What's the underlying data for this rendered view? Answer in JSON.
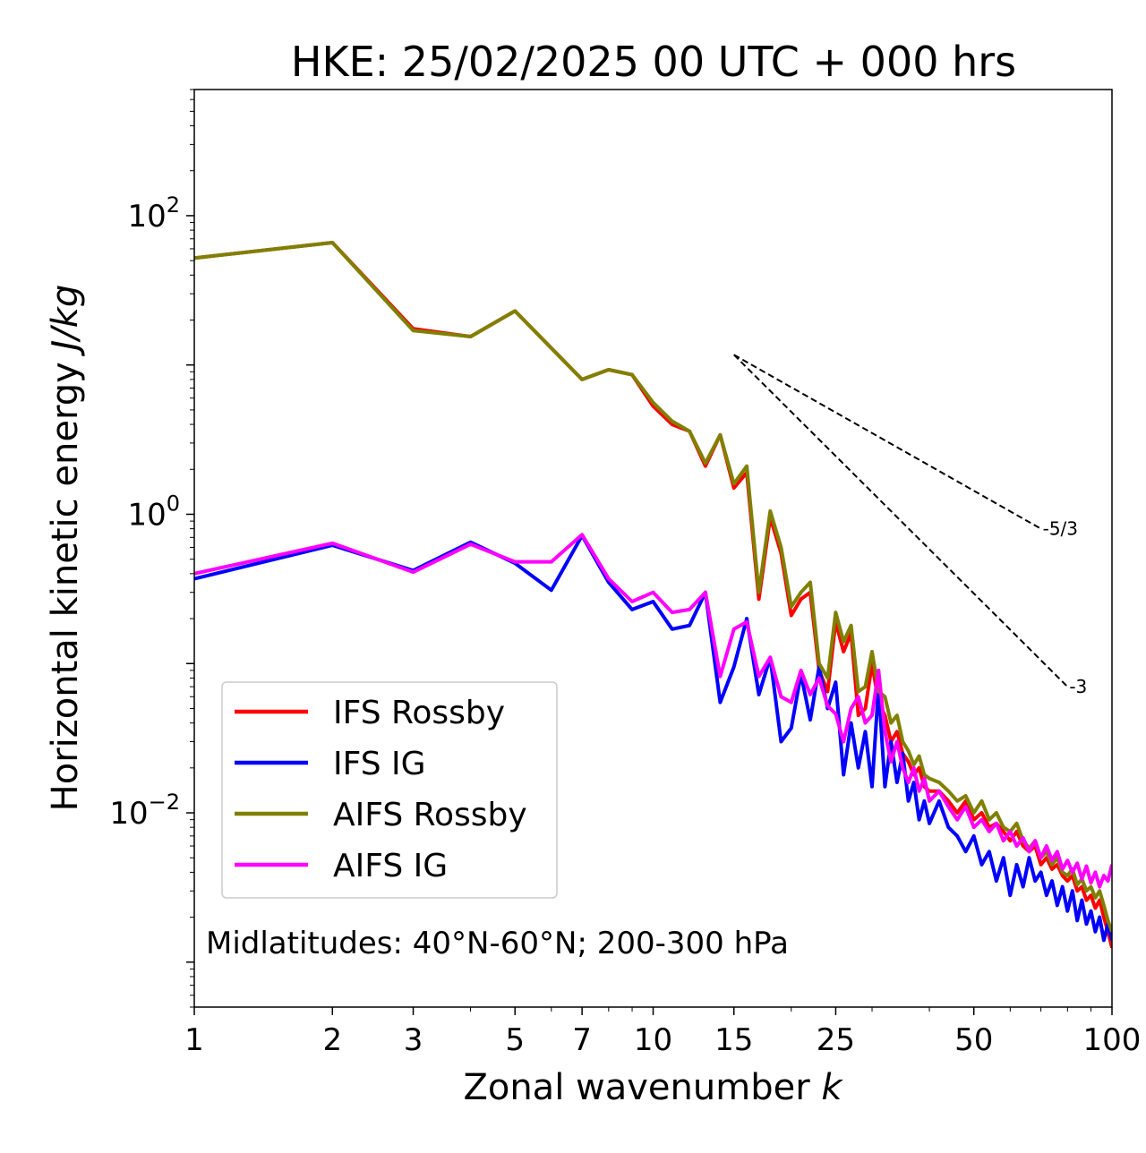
{
  "chart_data": {
    "type": "line",
    "title": "HKE: 25/02/2025 00 UTC + 000 hrs",
    "xlabel": "Zonal wavenumber",
    "xlabel_var": "k",
    "ylabel": "Horizontal kinetic energy",
    "ylabel_unit": "J/kg",
    "x_scale": "log",
    "y_scale": "log",
    "xlim": [
      1,
      100
    ],
    "ylim": [
      0.0005,
      700
    ],
    "x_ticks": [
      1,
      2,
      3,
      5,
      7,
      10,
      15,
      25,
      50,
      100
    ],
    "x_tick_labels": [
      "1",
      "2",
      "3",
      "5",
      "7",
      "10",
      "15",
      "25",
      "50",
      "100"
    ],
    "y_ticks": [
      0.01,
      1,
      100
    ],
    "y_tick_labels": [
      {
        "base": "10",
        "exp": "−2"
      },
      {
        "base": "10",
        "exp": "0"
      },
      {
        "base": "10",
        "exp": "2"
      }
    ],
    "grid": false,
    "legend_position": "lower-left",
    "annotation": "Midlatitudes: 40°N-60°N; 200-300 hPa",
    "reference_slopes": [
      {
        "label": "-5/3",
        "x": [
          15,
          70
        ],
        "y": [
          11.7,
          0.8
        ]
      },
      {
        "label": "-3",
        "x": [
          15,
          80
        ],
        "y": [
          11.7,
          0.07
        ]
      }
    ],
    "series": [
      {
        "name": "IFS Rossby",
        "color": "#ff0000",
        "points": [
          [
            1,
            52
          ],
          [
            2,
            66
          ],
          [
            3,
            17.5
          ],
          [
            4,
            15.5
          ],
          [
            5,
            23
          ],
          [
            7,
            8
          ],
          [
            8,
            9.3
          ],
          [
            9,
            8.6
          ],
          [
            10,
            5.3
          ],
          [
            11,
            4
          ],
          [
            12,
            3.6
          ],
          [
            13,
            2.1
          ],
          [
            14,
            3.4
          ],
          [
            15,
            1.5
          ],
          [
            16,
            1.9
          ],
          [
            17,
            0.27
          ],
          [
            18,
            0.95
          ],
          [
            19,
            0.55
          ],
          [
            20,
            0.21
          ],
          [
            21,
            0.27
          ],
          [
            22,
            0.3
          ],
          [
            23,
            0.09
          ],
          [
            24,
            0.065
          ],
          [
            25,
            0.19
          ],
          [
            26,
            0.12
          ],
          [
            27,
            0.16
          ],
          [
            28,
            0.045
          ],
          [
            29,
            0.05
          ],
          [
            30,
            0.1
          ],
          [
            31,
            0.055
          ],
          [
            32,
            0.045
          ],
          [
            33,
            0.03
          ],
          [
            34,
            0.035
          ],
          [
            35,
            0.025
          ],
          [
            36,
            0.022
          ],
          [
            37,
            0.018
          ],
          [
            38,
            0.02
          ],
          [
            39,
            0.015
          ],
          [
            40,
            0.014
          ],
          [
            42,
            0.014
          ],
          [
            44,
            0.012
          ],
          [
            46,
            0.01
          ],
          [
            48,
            0.012
          ],
          [
            50,
            0.009
          ],
          [
            52,
            0.01
          ],
          [
            54,
            0.008
          ],
          [
            56,
            0.0085
          ],
          [
            58,
            0.0075
          ],
          [
            60,
            0.0065
          ],
          [
            62,
            0.0075
          ],
          [
            64,
            0.006
          ],
          [
            66,
            0.0055
          ],
          [
            68,
            0.006
          ],
          [
            70,
            0.0045
          ],
          [
            72,
            0.005
          ],
          [
            74,
            0.0042
          ],
          [
            76,
            0.0045
          ],
          [
            78,
            0.0038
          ],
          [
            80,
            0.0035
          ],
          [
            82,
            0.0038
          ],
          [
            84,
            0.003
          ],
          [
            86,
            0.0032
          ],
          [
            88,
            0.0026
          ],
          [
            90,
            0.0028
          ],
          [
            92,
            0.0023
          ],
          [
            94,
            0.0026
          ],
          [
            96,
            0.002
          ],
          [
            98,
            0.0016
          ],
          [
            100,
            0.00125
          ]
        ]
      },
      {
        "name": "IFS IG",
        "color": "#0000ff",
        "points": [
          [
            1,
            0.37
          ],
          [
            2,
            0.62
          ],
          [
            3,
            0.42
          ],
          [
            4,
            0.65
          ],
          [
            5,
            0.47
          ],
          [
            6,
            0.31
          ],
          [
            7,
            0.72
          ],
          [
            8,
            0.35
          ],
          [
            9,
            0.23
          ],
          [
            10,
            0.26
          ],
          [
            11,
            0.17
          ],
          [
            12,
            0.18
          ],
          [
            13,
            0.3
          ],
          [
            14,
            0.055
          ],
          [
            15,
            0.095
          ],
          [
            16,
            0.2
          ],
          [
            17,
            0.062
          ],
          [
            18,
            0.11
          ],
          [
            19,
            0.03
          ],
          [
            20,
            0.037
          ],
          [
            21,
            0.085
          ],
          [
            22,
            0.042
          ],
          [
            23,
            0.095
          ],
          [
            24,
            0.05
          ],
          [
            25,
            0.075
          ],
          [
            26,
            0.018
          ],
          [
            27,
            0.04
          ],
          [
            28,
            0.02
          ],
          [
            29,
            0.035
          ],
          [
            30,
            0.015
          ],
          [
            31,
            0.07
          ],
          [
            32,
            0.015
          ],
          [
            33,
            0.03
          ],
          [
            34,
            0.016
          ],
          [
            35,
            0.025
          ],
          [
            36,
            0.012
          ],
          [
            37,
            0.016
          ],
          [
            38,
            0.009
          ],
          [
            39,
            0.012
          ],
          [
            40,
            0.0085
          ],
          [
            42,
            0.012
          ],
          [
            44,
            0.008
          ],
          [
            46,
            0.007
          ],
          [
            48,
            0.0055
          ],
          [
            50,
            0.007
          ],
          [
            52,
            0.0045
          ],
          [
            54,
            0.0055
          ],
          [
            56,
            0.0035
          ],
          [
            58,
            0.005
          ],
          [
            60,
            0.0028
          ],
          [
            62,
            0.0045
          ],
          [
            64,
            0.0032
          ],
          [
            66,
            0.005
          ],
          [
            68,
            0.0035
          ],
          [
            70,
            0.004
          ],
          [
            72,
            0.0028
          ],
          [
            74,
            0.0035
          ],
          [
            76,
            0.0024
          ],
          [
            78,
            0.0032
          ],
          [
            80,
            0.0022
          ],
          [
            82,
            0.003
          ],
          [
            84,
            0.0019
          ],
          [
            86,
            0.0026
          ],
          [
            88,
            0.0018
          ],
          [
            90,
            0.0022
          ],
          [
            92,
            0.0016
          ],
          [
            94,
            0.002
          ],
          [
            96,
            0.0014
          ],
          [
            98,
            0.0018
          ],
          [
            100,
            0.0014
          ]
        ]
      },
      {
        "name": "AIFS Rossby",
        "color": "#808000",
        "points": [
          [
            1,
            52
          ],
          [
            2,
            66
          ],
          [
            3,
            17
          ],
          [
            4,
            15.5
          ],
          [
            5,
            23
          ],
          [
            7,
            8
          ],
          [
            8,
            9.3
          ],
          [
            9,
            8.6
          ],
          [
            10,
            5.6
          ],
          [
            11,
            4.2
          ],
          [
            12,
            3.6
          ],
          [
            13,
            2.2
          ],
          [
            14,
            3.4
          ],
          [
            15,
            1.6
          ],
          [
            16,
            2.1
          ],
          [
            17,
            0.3
          ],
          [
            18,
            1.05
          ],
          [
            19,
            0.6
          ],
          [
            20,
            0.24
          ],
          [
            21,
            0.3
          ],
          [
            22,
            0.35
          ],
          [
            23,
            0.1
          ],
          [
            24,
            0.08
          ],
          [
            25,
            0.22
          ],
          [
            26,
            0.14
          ],
          [
            27,
            0.18
          ],
          [
            28,
            0.065
          ],
          [
            29,
            0.07
          ],
          [
            30,
            0.12
          ],
          [
            31,
            0.065
          ],
          [
            32,
            0.06
          ],
          [
            33,
            0.04
          ],
          [
            34,
            0.045
          ],
          [
            35,
            0.03
          ],
          [
            36,
            0.026
          ],
          [
            37,
            0.021
          ],
          [
            38,
            0.024
          ],
          [
            39,
            0.018
          ],
          [
            40,
            0.017
          ],
          [
            42,
            0.016
          ],
          [
            44,
            0.014
          ],
          [
            46,
            0.012
          ],
          [
            48,
            0.013
          ],
          [
            50,
            0.01
          ],
          [
            52,
            0.012
          ],
          [
            54,
            0.009
          ],
          [
            56,
            0.01
          ],
          [
            58,
            0.008
          ],
          [
            60,
            0.0075
          ],
          [
            62,
            0.0085
          ],
          [
            64,
            0.0065
          ],
          [
            66,
            0.0058
          ],
          [
            68,
            0.0065
          ],
          [
            70,
            0.005
          ],
          [
            72,
            0.0055
          ],
          [
            74,
            0.0045
          ],
          [
            76,
            0.005
          ],
          [
            78,
            0.004
          ],
          [
            80,
            0.0038
          ],
          [
            82,
            0.0042
          ],
          [
            84,
            0.0033
          ],
          [
            86,
            0.0036
          ],
          [
            88,
            0.003
          ],
          [
            90,
            0.0032
          ],
          [
            92,
            0.0027
          ],
          [
            94,
            0.003
          ],
          [
            96,
            0.0024
          ],
          [
            98,
            0.0019
          ],
          [
            100,
            0.0016
          ]
        ]
      },
      {
        "name": "AIFS IG",
        "color": "#ff00ff",
        "points": [
          [
            1,
            0.4
          ],
          [
            2,
            0.64
          ],
          [
            3,
            0.41
          ],
          [
            4,
            0.63
          ],
          [
            5,
            0.48
          ],
          [
            6,
            0.48
          ],
          [
            7,
            0.73
          ],
          [
            8,
            0.37
          ],
          [
            9,
            0.26
          ],
          [
            10,
            0.3
          ],
          [
            11,
            0.22
          ],
          [
            12,
            0.23
          ],
          [
            13,
            0.3
          ],
          [
            14,
            0.082
          ],
          [
            15,
            0.17
          ],
          [
            16,
            0.19
          ],
          [
            17,
            0.082
          ],
          [
            18,
            0.11
          ],
          [
            19,
            0.06
          ],
          [
            20,
            0.055
          ],
          [
            21,
            0.09
          ],
          [
            22,
            0.062
          ],
          [
            23,
            0.08
          ],
          [
            24,
            0.052
          ],
          [
            25,
            0.046
          ],
          [
            26,
            0.03
          ],
          [
            27,
            0.05
          ],
          [
            28,
            0.06
          ],
          [
            29,
            0.04
          ],
          [
            30,
            0.045
          ],
          [
            31,
            0.09
          ],
          [
            32,
            0.035
          ],
          [
            33,
            0.022
          ],
          [
            34,
            0.03
          ],
          [
            35,
            0.02
          ],
          [
            36,
            0.016
          ],
          [
            37,
            0.02
          ],
          [
            38,
            0.014
          ],
          [
            39,
            0.017
          ],
          [
            40,
            0.012
          ],
          [
            42,
            0.014
          ],
          [
            44,
            0.011
          ],
          [
            46,
            0.009
          ],
          [
            48,
            0.011
          ],
          [
            50,
            0.008
          ],
          [
            52,
            0.009
          ],
          [
            54,
            0.0075
          ],
          [
            56,
            0.0085
          ],
          [
            58,
            0.0065
          ],
          [
            60,
            0.0075
          ],
          [
            62,
            0.006
          ],
          [
            64,
            0.0068
          ],
          [
            66,
            0.0055
          ],
          [
            68,
            0.0065
          ],
          [
            70,
            0.005
          ],
          [
            72,
            0.006
          ],
          [
            74,
            0.0048
          ],
          [
            76,
            0.0055
          ],
          [
            78,
            0.0042
          ],
          [
            80,
            0.0048
          ],
          [
            82,
            0.004
          ],
          [
            84,
            0.0046
          ],
          [
            86,
            0.0036
          ],
          [
            88,
            0.0044
          ],
          [
            90,
            0.0034
          ],
          [
            92,
            0.004
          ],
          [
            94,
            0.0032
          ],
          [
            96,
            0.0038
          ],
          [
            98,
            0.0035
          ],
          [
            100,
            0.0045
          ]
        ]
      }
    ]
  }
}
